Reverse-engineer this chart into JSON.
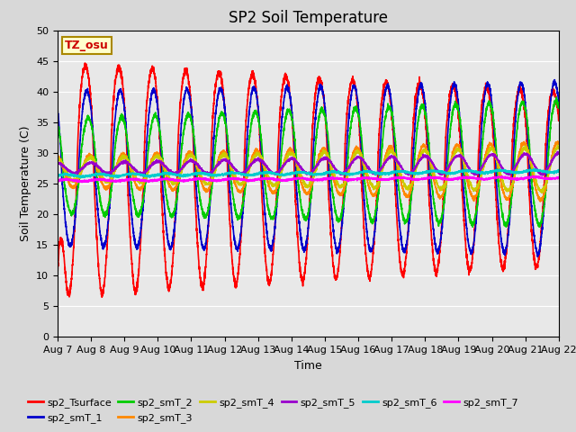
{
  "title": "SP2 Soil Temperature",
  "ylabel": "Soil Temperature (C)",
  "xlabel": "Time",
  "ylim": [
    0,
    50
  ],
  "yticks": [
    0,
    5,
    10,
    15,
    20,
    25,
    30,
    35,
    40,
    45,
    50
  ],
  "series_colors": {
    "sp2_Tsurface": "#ff0000",
    "sp2_smT_1": "#0000cc",
    "sp2_smT_2": "#00cc00",
    "sp2_smT_3": "#ff8800",
    "sp2_smT_4": "#cccc00",
    "sp2_smT_5": "#9900cc",
    "sp2_smT_6": "#00cccc",
    "sp2_smT_7": "#ff00ff"
  },
  "annotation_text": "TZ_osu",
  "annotation_color": "#cc0000",
  "annotation_bg": "#ffffcc",
  "annotation_border": "#aa8800",
  "fig_bg_color": "#d8d8d8",
  "plot_bg_color": "#e8e8e8",
  "grid_color": "#ffffff",
  "title_fontsize": 12,
  "axis_fontsize": 9,
  "tick_fontsize": 8,
  "legend_fontsize": 8,
  "linewidth": 1.2
}
